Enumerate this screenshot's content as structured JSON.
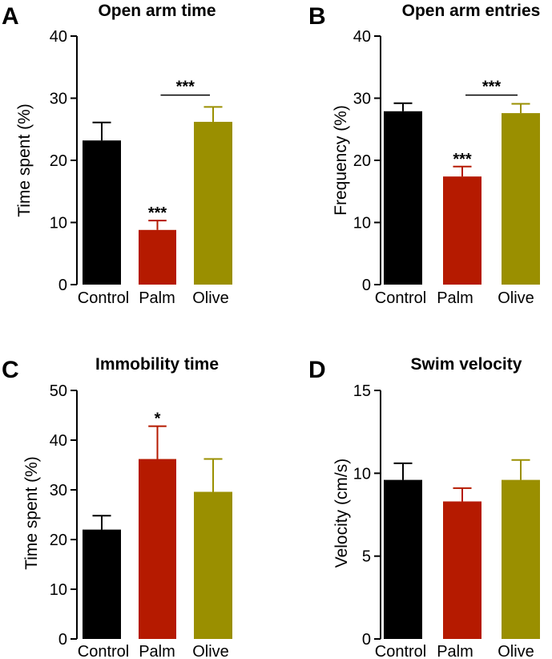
{
  "colors": {
    "Control": "#000000",
    "Palm": "#b51a00",
    "Olive": "#9a8f00"
  },
  "chart_data": [
    {
      "type": "bar",
      "panel": "A",
      "title": "Open arm time",
      "ylabel": "Time spent (%)",
      "categories": [
        "Control",
        "Palm",
        "Olive"
      ],
      "values": [
        23.2,
        8.8,
        26.2
      ],
      "errors": [
        2.9,
        1.5,
        2.4
      ],
      "ylim": [
        0,
        40
      ],
      "yticks": [
        0,
        10,
        20,
        30,
        40
      ],
      "annotations": [
        {
          "text": "***",
          "over": "Palm",
          "at": 10.3
        },
        {
          "text": "***",
          "bracket": [
            "Palm",
            "Olive"
          ],
          "at": 30.5
        }
      ]
    },
    {
      "type": "bar",
      "panel": "B",
      "title": "Open arm entries",
      "ylabel": "Frequency (%)",
      "categories": [
        "Control",
        "Palm",
        "Olive"
      ],
      "values": [
        27.9,
        17.4,
        27.6
      ],
      "errors": [
        1.3,
        1.6,
        1.5
      ],
      "ylim": [
        0,
        40
      ],
      "yticks": [
        0,
        10,
        20,
        30,
        40
      ],
      "annotations": [
        {
          "text": "***",
          "over": "Palm",
          "at": 19.0
        },
        {
          "text": "***",
          "bracket": [
            "Palm",
            "Olive"
          ],
          "at": 30.5
        }
      ]
    },
    {
      "type": "bar",
      "panel": "C",
      "title": "Immobility time",
      "ylabel": "Time spent (%)",
      "categories": [
        "Control",
        "Palm",
        "Olive"
      ],
      "values": [
        22.0,
        36.2,
        29.6
      ],
      "errors": [
        2.8,
        6.6,
        6.6
      ],
      "ylim": [
        0,
        50
      ],
      "yticks": [
        0,
        10,
        20,
        30,
        40,
        50
      ],
      "annotations": [
        {
          "text": "*",
          "over": "Palm",
          "at": 42.8
        }
      ]
    },
    {
      "type": "bar",
      "panel": "D",
      "title": "Swim velocity",
      "ylabel": "Velocity (cm/s)",
      "categories": [
        "Control",
        "Palm",
        "Olive"
      ],
      "values": [
        9.6,
        8.3,
        9.6
      ],
      "errors": [
        1.0,
        0.8,
        1.2
      ],
      "ylim": [
        0,
        15
      ],
      "yticks": [
        0,
        5,
        10,
        15
      ],
      "annotations": []
    }
  ]
}
